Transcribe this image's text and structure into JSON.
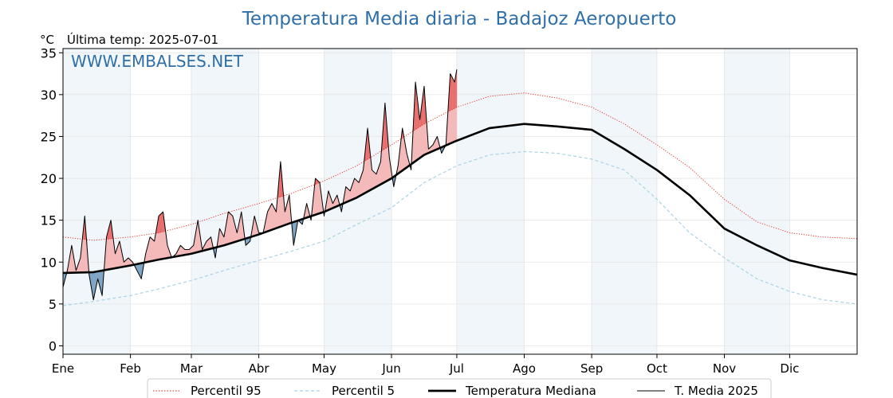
{
  "header": {
    "title": "Temperatura Media diaria - Badajoz Aeropuerto",
    "unit_label": "°C",
    "last_temp_label": "Última temp: 2025-07-01",
    "watermark": "WWW.EMBALSES.NET"
  },
  "chart_data": {
    "type": "line",
    "title": "Temperatura Media diaria - Badajoz Aeropuerto",
    "ylabel": "°C",
    "xlabel": "",
    "ylim": [
      -1,
      35.5
    ],
    "xlim": [
      1,
      366
    ],
    "y_ticks": [
      0,
      5,
      10,
      15,
      20,
      25,
      30,
      35
    ],
    "x_ticks": [
      {
        "label": "Ene",
        "day": 1
      },
      {
        "label": "Feb",
        "day": 32
      },
      {
        "label": "Mar",
        "day": 60
      },
      {
        "label": "Abr",
        "day": 91
      },
      {
        "label": "May",
        "day": 121
      },
      {
        "label": "Jun",
        "day": 152
      },
      {
        "label": "Jul",
        "day": 182
      },
      {
        "label": "Ago",
        "day": 213
      },
      {
        "label": "Sep",
        "day": 244
      },
      {
        "label": "Oct",
        "day": 274
      },
      {
        "label": "Nov",
        "day": 305
      },
      {
        "label": "Dic",
        "day": 335
      }
    ],
    "grid": true,
    "shaded_month_bands": [
      "Ene",
      "Mar",
      "May",
      "Jul",
      "Sep",
      "Nov"
    ],
    "legend_position": "bottom",
    "series": [
      {
        "name": "Percentil 95",
        "color": "#e8261f",
        "style": "dotted",
        "x": [
          1,
          15,
          32,
          45,
          60,
          75,
          91,
          106,
          121,
          136,
          152,
          167,
          182,
          197,
          213,
          228,
          244,
          259,
          274,
          289,
          305,
          320,
          335,
          350,
          366
        ],
        "y": [
          13.0,
          12.6,
          13.0,
          13.5,
          14.5,
          15.8,
          17.0,
          18.2,
          19.7,
          21.5,
          24.0,
          26.5,
          28.5,
          29.8,
          30.2,
          29.6,
          28.5,
          26.5,
          24.0,
          21.3,
          17.5,
          14.8,
          13.5,
          13.0,
          12.8
        ]
      },
      {
        "name": "Percentil 5",
        "color": "#a9d3e4",
        "style": "dashed",
        "x": [
          1,
          15,
          32,
          45,
          60,
          75,
          91,
          106,
          121,
          136,
          152,
          167,
          182,
          197,
          213,
          228,
          244,
          259,
          274,
          289,
          305,
          320,
          335,
          350,
          366
        ],
        "y": [
          4.8,
          5.3,
          6.0,
          6.8,
          7.8,
          9.0,
          10.2,
          11.3,
          12.5,
          14.5,
          16.5,
          19.5,
          21.5,
          22.8,
          23.2,
          23.0,
          22.3,
          21.0,
          17.5,
          13.5,
          10.5,
          8.0,
          6.5,
          5.5,
          5.0
        ]
      },
      {
        "name": "Temperatura Mediana",
        "color": "#000000",
        "style": "solid-thick",
        "x": [
          1,
          15,
          32,
          45,
          60,
          75,
          91,
          106,
          121,
          136,
          152,
          167,
          182,
          197,
          213,
          228,
          244,
          259,
          274,
          289,
          305,
          320,
          335,
          350,
          366
        ],
        "y": [
          8.7,
          8.8,
          9.6,
          10.3,
          11.0,
          12.0,
          13.3,
          14.7,
          16.0,
          17.7,
          20.0,
          22.8,
          24.5,
          26.0,
          26.5,
          26.2,
          25.8,
          23.5,
          21.0,
          18.0,
          14.0,
          12.0,
          10.2,
          9.3,
          8.5
        ]
      },
      {
        "name": "T. Media 2025",
        "color": "#000000",
        "style": "solid-thin",
        "x": [
          1,
          3,
          5,
          7,
          9,
          11,
          13,
          15,
          17,
          19,
          21,
          23,
          25,
          27,
          29,
          31,
          33,
          35,
          37,
          39,
          41,
          43,
          45,
          47,
          49,
          51,
          53,
          55,
          57,
          59,
          61,
          63,
          65,
          67,
          69,
          71,
          73,
          75,
          77,
          79,
          81,
          83,
          85,
          87,
          89,
          91,
          93,
          95,
          97,
          99,
          101,
          103,
          105,
          107,
          109,
          111,
          113,
          115,
          117,
          119,
          121,
          123,
          125,
          127,
          129,
          131,
          133,
          135,
          137,
          139,
          141,
          143,
          145,
          147,
          149,
          151,
          153,
          155,
          157,
          159,
          161,
          163,
          165,
          167,
          169,
          171,
          173,
          175,
          177,
          179,
          181,
          182
        ],
        "y": [
          7.0,
          9.0,
          12.0,
          9.0,
          10.5,
          15.5,
          8.5,
          5.5,
          8.0,
          6.0,
          13.0,
          15.0,
          11.0,
          12.5,
          10.0,
          10.5,
          10.0,
          9.0,
          8.0,
          11.0,
          13.0,
          12.5,
          15.5,
          16.0,
          12.0,
          10.5,
          11.0,
          12.0,
          11.5,
          11.5,
          12.0,
          15.0,
          11.5,
          12.5,
          13.0,
          10.5,
          14.0,
          13.0,
          16.0,
          15.5,
          13.5,
          16.0,
          12.0,
          12.5,
          15.5,
          13.5,
          13.5,
          16.0,
          17.0,
          16.0,
          22.0,
          16.0,
          18.0,
          12.0,
          15.0,
          14.5,
          17.0,
          15.0,
          20.0,
          19.5,
          15.5,
          18.5,
          17.0,
          18.0,
          16.0,
          19.0,
          18.5,
          20.0,
          19.5,
          21.0,
          26.0,
          21.0,
          20.5,
          22.0,
          29.0,
          22.5,
          19.0,
          21.5,
          26.0,
          23.0,
          21.0,
          31.5,
          27.0,
          31.0,
          23.5,
          24.0,
          25.0,
          23.0,
          24.0,
          32.5,
          31.5,
          33.0
        ]
      }
    ],
    "fills": {
      "above_median_color": "#f4b9b9",
      "above_p95_color": "#e96a6a",
      "below_median_color": "#7fa6c6"
    }
  },
  "legend": [
    {
      "label": "Percentil 95"
    },
    {
      "label": "Percentil 5"
    },
    {
      "label": "Temperatura Mediana"
    },
    {
      "label": "T. Media 2025"
    }
  ]
}
